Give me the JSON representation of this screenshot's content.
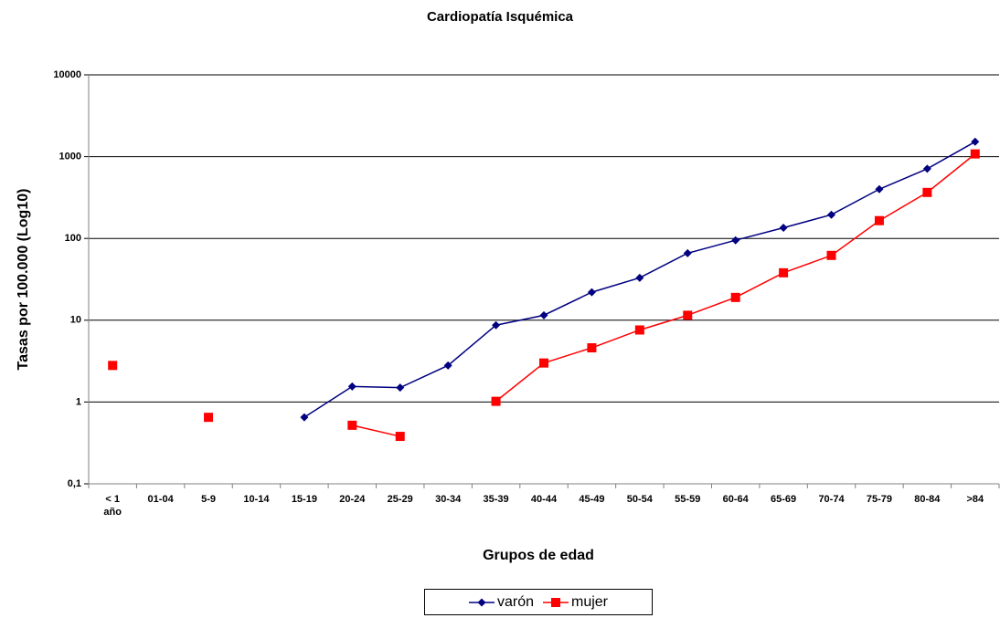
{
  "chart_data": {
    "type": "line",
    "title": "Cardiopatía Isquémica",
    "x_label": "Grupos de edad",
    "y_label": "Tasas por 100.000 (Log10)",
    "categories": [
      "< 1 año",
      "01-04",
      "5-9",
      "10-14",
      "15-19",
      "20-24",
      "25-29",
      "30-34",
      "35-39",
      "40-44",
      "45-49",
      "50-54",
      "55-59",
      "60-64",
      "65-69",
      "70-74",
      "75-79",
      "80-84",
      ">84"
    ],
    "series": [
      {
        "name": "varón",
        "color": "#000080",
        "marker": "diamond",
        "values": [
          null,
          null,
          null,
          null,
          0.65,
          1.55,
          1.5,
          2.8,
          8.7,
          11.5,
          22,
          33,
          66,
          95,
          135,
          195,
          400,
          710,
          1520
        ]
      },
      {
        "name": "mujer",
        "color": "#ff0000",
        "marker": "square",
        "values": [
          2.8,
          null,
          0.65,
          null,
          null,
          0.52,
          0.38,
          null,
          1.02,
          3.0,
          4.6,
          7.6,
          11.5,
          19,
          38,
          62,
          165,
          365,
          1080
        ]
      }
    ],
    "ylim": [
      0.1,
      10000
    ],
    "yscale": "log",
    "yticks": [
      {
        "value": 0.1,
        "label": "0,1"
      },
      1,
      10,
      100,
      1000,
      10000
    ],
    "grid": true,
    "legend": "bottom"
  }
}
